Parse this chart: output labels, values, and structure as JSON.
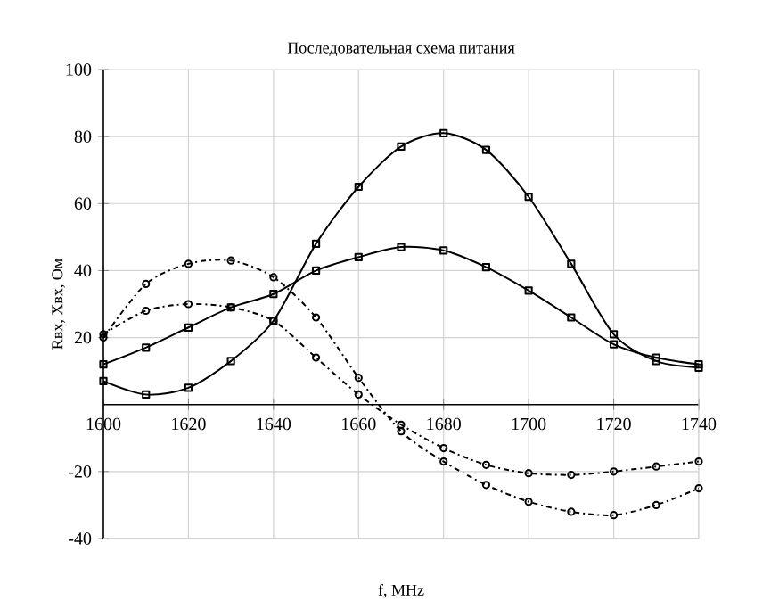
{
  "chart_data": {
    "type": "line",
    "title": "Последовательная схема питания",
    "xlabel": "f, MHz",
    "ylabel": "Rвх, Xвх, Ом",
    "x": [
      1600,
      1610,
      1620,
      1630,
      1640,
      1650,
      1660,
      1670,
      1680,
      1690,
      1700,
      1710,
      1720,
      1730,
      1740
    ],
    "series": [
      {
        "color": "#000000",
        "marker": "square",
        "line_style": "solid",
        "values": [
          7,
          3,
          5,
          13,
          25,
          48,
          65,
          77,
          81,
          76,
          62,
          42,
          21,
          13,
          11
        ]
      },
      {
        "color": "#000000",
        "marker": "square",
        "line_style": "solid",
        "values": [
          12,
          17,
          23,
          29,
          33,
          40,
          44,
          47,
          46,
          41,
          34,
          26,
          18,
          14,
          12
        ]
      },
      {
        "color": "#000000",
        "marker": "circle",
        "line_style": "dashdot",
        "values": [
          21,
          28,
          30,
          29,
          25,
          14,
          3,
          -6,
          -13,
          -18,
          -20.5,
          -21,
          -20,
          -18.5,
          -17
        ]
      },
      {
        "color": "#000000",
        "marker": "circle",
        "line_style": "dashdot",
        "values": [
          20,
          36,
          42,
          43,
          38,
          26,
          8,
          -8,
          -17,
          -24,
          -29,
          -32,
          -33,
          -30,
          -25
        ]
      }
    ],
    "xlim": [
      1600,
      1740
    ],
    "ylim": [
      -40,
      100
    ],
    "xticks": [
      1600,
      1620,
      1640,
      1660,
      1680,
      1700,
      1720,
      1740
    ],
    "yticks": [
      -40,
      -20,
      20,
      40,
      60,
      80,
      100
    ],
    "grid": true
  }
}
